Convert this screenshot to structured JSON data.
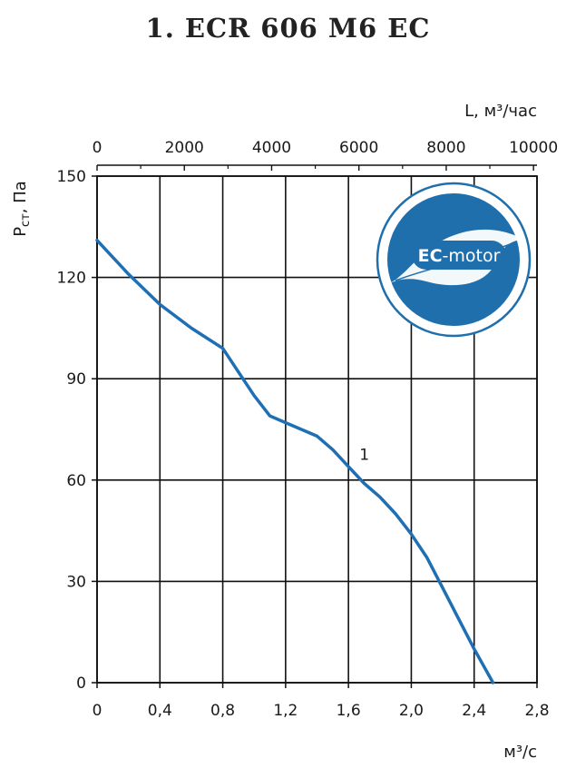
{
  "title": "1. ECR 606 M6 EC",
  "badge": {
    "text_bold": "EC",
    "text_rest": "-motor",
    "color": "#1f6fad"
  },
  "colors": {
    "curve": "#1f6fb4",
    "grid": "#111111"
  },
  "chart_data": {
    "type": "line",
    "grid": true,
    "ylabel_main": "Р",
    "ylabel_sub": "ст",
    "ylabel_rest": ", Па",
    "xlabel": "м³/с",
    "x2label": "L, м³/час",
    "xlim": [
      0,
      2.8
    ],
    "ylim": [
      0,
      150
    ],
    "x_ticks": [
      "0",
      "0,4",
      "0,8",
      "1,2",
      "1,6",
      "2,0",
      "2,4",
      "2,8"
    ],
    "y_ticks": [
      "0",
      "30",
      "60",
      "90",
      "120",
      "150"
    ],
    "x2lim": [
      0,
      10080
    ],
    "x2_ticks": [
      "0",
      "2000",
      "4000",
      "6000",
      "8000",
      "10000"
    ],
    "series": [
      {
        "name": "1",
        "x": [
          0,
          0.2,
          0.4,
          0.6,
          0.8,
          0.9,
          1.0,
          1.1,
          1.2,
          1.3,
          1.4,
          1.5,
          1.6,
          1.7,
          1.8,
          1.9,
          2.0,
          2.1,
          2.2,
          2.3,
          2.4,
          2.52
        ],
        "y": [
          131,
          121,
          112,
          105,
          99,
          92,
          85,
          79,
          77,
          75,
          73,
          69,
          64,
          59,
          55,
          50,
          44,
          37,
          28,
          19,
          10,
          0
        ]
      }
    ]
  }
}
